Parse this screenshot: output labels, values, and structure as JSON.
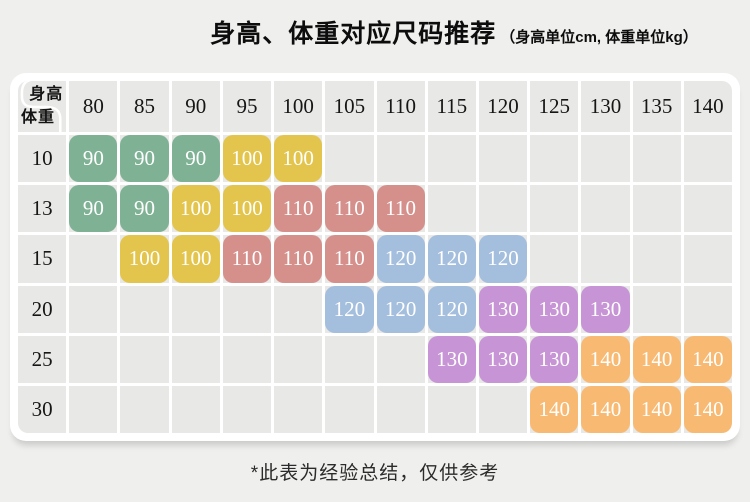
{
  "chart_data": {
    "type": "table",
    "title": "身高、体重对应尺码推荐",
    "subtitle": "（身高单位cm, 体重单位kg）",
    "corner": {
      "top": "身高",
      "bottom": "体重"
    },
    "columns_height_cm": [
      "80",
      "85",
      "90",
      "95",
      "100",
      "105",
      "110",
      "115",
      "120",
      "125",
      "130",
      "135",
      "140"
    ],
    "rows_weight_kg": [
      "10",
      "13",
      "15",
      "20",
      "25",
      "30"
    ],
    "values_size": [
      [
        "90",
        "90",
        "90",
        "100",
        "100",
        "",
        "",
        "",
        "",
        "",
        "",
        "",
        ""
      ],
      [
        "90",
        "90",
        "100",
        "100",
        "110",
        "110",
        "110",
        "",
        "",
        "",
        "",
        "",
        ""
      ],
      [
        "",
        "100",
        "100",
        "110",
        "110",
        "110",
        "120",
        "120",
        "120",
        "",
        "",
        "",
        ""
      ],
      [
        "",
        "",
        "",
        "",
        "",
        "120",
        "120",
        "120",
        "130",
        "130",
        "130",
        "",
        ""
      ],
      [
        "",
        "",
        "",
        "",
        "",
        "",
        "",
        "130",
        "130",
        "130",
        "140",
        "140",
        "140"
      ],
      [
        "",
        "",
        "",
        "",
        "",
        "",
        "",
        "",
        "",
        "140",
        "140",
        "140",
        "140"
      ]
    ],
    "size_colors": {
      "90": "#7fb294",
      "100": "#e3c54d",
      "110": "#d6908c",
      "120": "#a4bedd",
      "130": "#c794d6",
      "140": "#f8ba72"
    },
    "footnote": "*此表为经验总结，仅供参考"
  },
  "palette": {
    "page_bg": "#efefed",
    "card_bg": "#ffffff",
    "cell_bg": "#e8e8e6",
    "header_text": "#161616",
    "cell_text": "#ffffff"
  }
}
